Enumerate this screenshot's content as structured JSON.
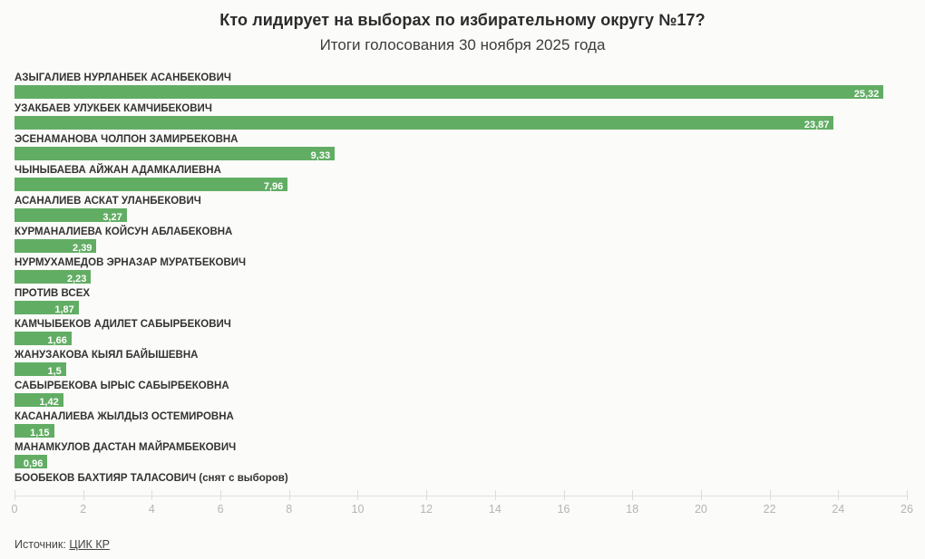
{
  "header": {
    "title": "Кто лидирует на выборах по избирательному округу №17?",
    "subtitle": "Итоги голосования 30 ноября 2025 года"
  },
  "footer": {
    "source_label": "Источник:",
    "source_link_text": "ЦИК КР"
  },
  "colors": {
    "bar": "#62ad64",
    "bar_value_text": "#ffffff",
    "candidate_label": "#333333",
    "axis_text": "#b4b4b2",
    "axis_line": "#e2e2e0",
    "background": "#fbfbf9",
    "title_text": "#2b2b2b"
  },
  "chart_data": {
    "type": "bar",
    "orientation": "horizontal",
    "title": "Кто лидирует на выборах по избирательному округу №17?",
    "subtitle": "Итоги голосования 30 ноября 2025 года",
    "xlabel": "",
    "ylabel": "",
    "xlim": [
      0,
      26
    ],
    "x_ticks": [
      0,
      2,
      4,
      6,
      8,
      10,
      12,
      14,
      16,
      18,
      20,
      22,
      24,
      26
    ],
    "grid": false,
    "legend": false,
    "value_decimal_separator": ",",
    "categories": [
      "АЗЫГАЛИЕВ НУРЛАНБЕК АСАНБЕКОВИЧ",
      "УЗАКБАЕВ УЛУКБЕК КАМЧИБЕКОВИЧ",
      "ЭСЕНАМАНОВА ЧОЛПОН ЗАМИРБЕКОВНА",
      "ЧЫНЫБАЕВА АЙЖАН АДАМКАЛИЕВНА",
      "АСАНАЛИЕВ АСКАТ УЛАНБЕКОВИЧ",
      "КУРМАНАЛИЕВА КОЙСУН АБЛАБЕКОВНА",
      "НУРМУХАМЕДОВ ЭРНАЗАР МУРАТБЕКОВИЧ",
      "ПРОТИВ ВСЕХ",
      "КАМЧЫБЕКОВ АДИЛЕТ САБЫРБЕКОВИЧ",
      "ЖАНУЗАКОВА КЫЯЛ БАЙЫШЕВНА",
      "САБЫРБЕКОВА ЫРЫС САБЫРБЕКОВНА",
      "КАСАНАЛИЕВА ЖЫЛДЫЗ ОСТЕМИРОВНА",
      "МАНАМКУЛОВ ДАСТАН МАЙРАМБЕКОВИЧ",
      "БООБЕКОВ БАХТИЯР ТАЛАСОВИЧ (снят с выборов)"
    ],
    "values": [
      25.32,
      23.87,
      9.33,
      7.96,
      3.27,
      2.39,
      2.23,
      1.87,
      1.66,
      1.5,
      1.42,
      1.15,
      0.96,
      null
    ],
    "value_labels": [
      "25,32",
      "23,87",
      "9,33",
      "7,96",
      "3,27",
      "2,39",
      "2,23",
      "1,87",
      "1,66",
      "1,5",
      "1,42",
      "1,15",
      "0,96",
      null
    ]
  }
}
